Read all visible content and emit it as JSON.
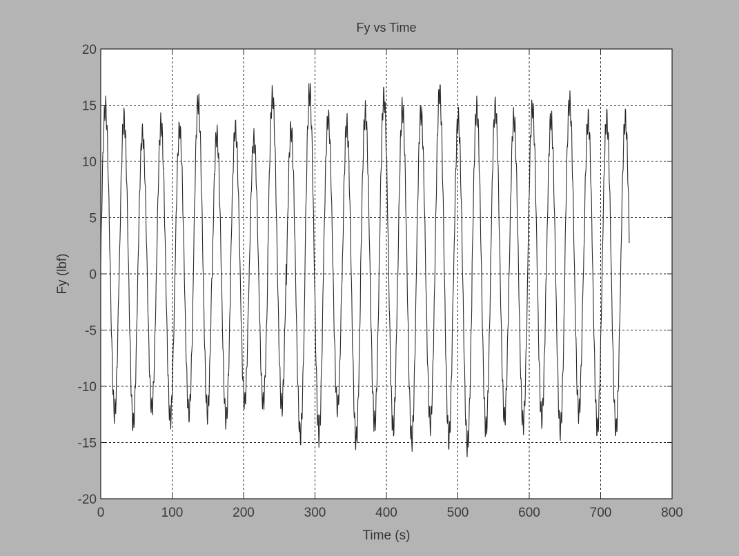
{
  "chart_data": {
    "type": "line",
    "title": "Fy vs Time",
    "xlabel": "Time (s)",
    "ylabel": "Fy (lbf)",
    "xlim": [
      0,
      800
    ],
    "ylim": [
      -20,
      20
    ],
    "xticks": [
      0,
      100,
      200,
      300,
      400,
      500,
      600,
      700,
      800
    ],
    "yticks": [
      -20,
      -15,
      -10,
      -5,
      0,
      5,
      10,
      15,
      20
    ],
    "xtick_labels": [
      "0",
      "100",
      "200",
      "300",
      "400",
      "500",
      "600",
      "700",
      "800"
    ],
    "ytick_labels": [
      "-20",
      "-15",
      "-10",
      "-5",
      "0",
      "5",
      "10",
      "15",
      "20"
    ],
    "grid": true,
    "line_color": "#2a2a2a",
    "series": [
      {
        "cycle_peaks": [
          16.0,
          15.0,
          13.5,
          14.5,
          14.0,
          16.5,
          13.5,
          14.0,
          13.0,
          17.0,
          14.0,
          17.5,
          15.0,
          14.5,
          15.5,
          17.0,
          16.0,
          15.5,
          17.5,
          15.0,
          16.0,
          16.0,
          15.0,
          16.0,
          15.0,
          16.5,
          15.0
        ],
        "cycle_troughs": [
          -13.5,
          -14.5,
          -13.0,
          -14.0,
          -13.5,
          -13.5,
          -14.0,
          -12.5,
          -12.5,
          -13.0,
          -15.5,
          -15.5,
          -13.0,
          -16.0,
          -14.5,
          -15.0,
          -16.0,
          -14.5,
          -16.0,
          -16.5,
          -15.0,
          -14.0,
          -14.5,
          -14.0,
          -15.0,
          -13.5,
          -15.0
        ],
        "x_start": 0,
        "x_end": 740,
        "period": 26
      }
    ]
  }
}
